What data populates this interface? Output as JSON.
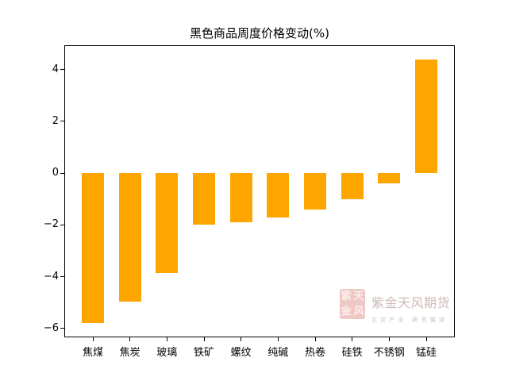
{
  "chart_data": {
    "type": "bar",
    "title": "黑色商品周度价格变动(%)",
    "categories": [
      "焦煤",
      "焦炭",
      "玻璃",
      "铁矿",
      "螺纹",
      "纯碱",
      "热卷",
      "硅铁",
      "不锈钢",
      "锰硅"
    ],
    "values": [
      -5.8,
      -4.95,
      -3.85,
      -2.0,
      -1.9,
      -1.7,
      -1.4,
      -1.0,
      -0.4,
      4.4
    ],
    "bar_color": "#FFA500",
    "axis_color": "#000000",
    "yticks": [
      4,
      2,
      0,
      -2,
      -4,
      -6
    ],
    "ylim": [
      -6.31,
      4.91
    ],
    "xlabel": "",
    "ylabel": "",
    "grid": false,
    "legend_position": "none"
  },
  "watermark": {
    "brand": "紫金天风期货",
    "slogan": "立足产业 研究驱动",
    "seal_text": "紫天金风",
    "seal_color": "#c9544c"
  }
}
